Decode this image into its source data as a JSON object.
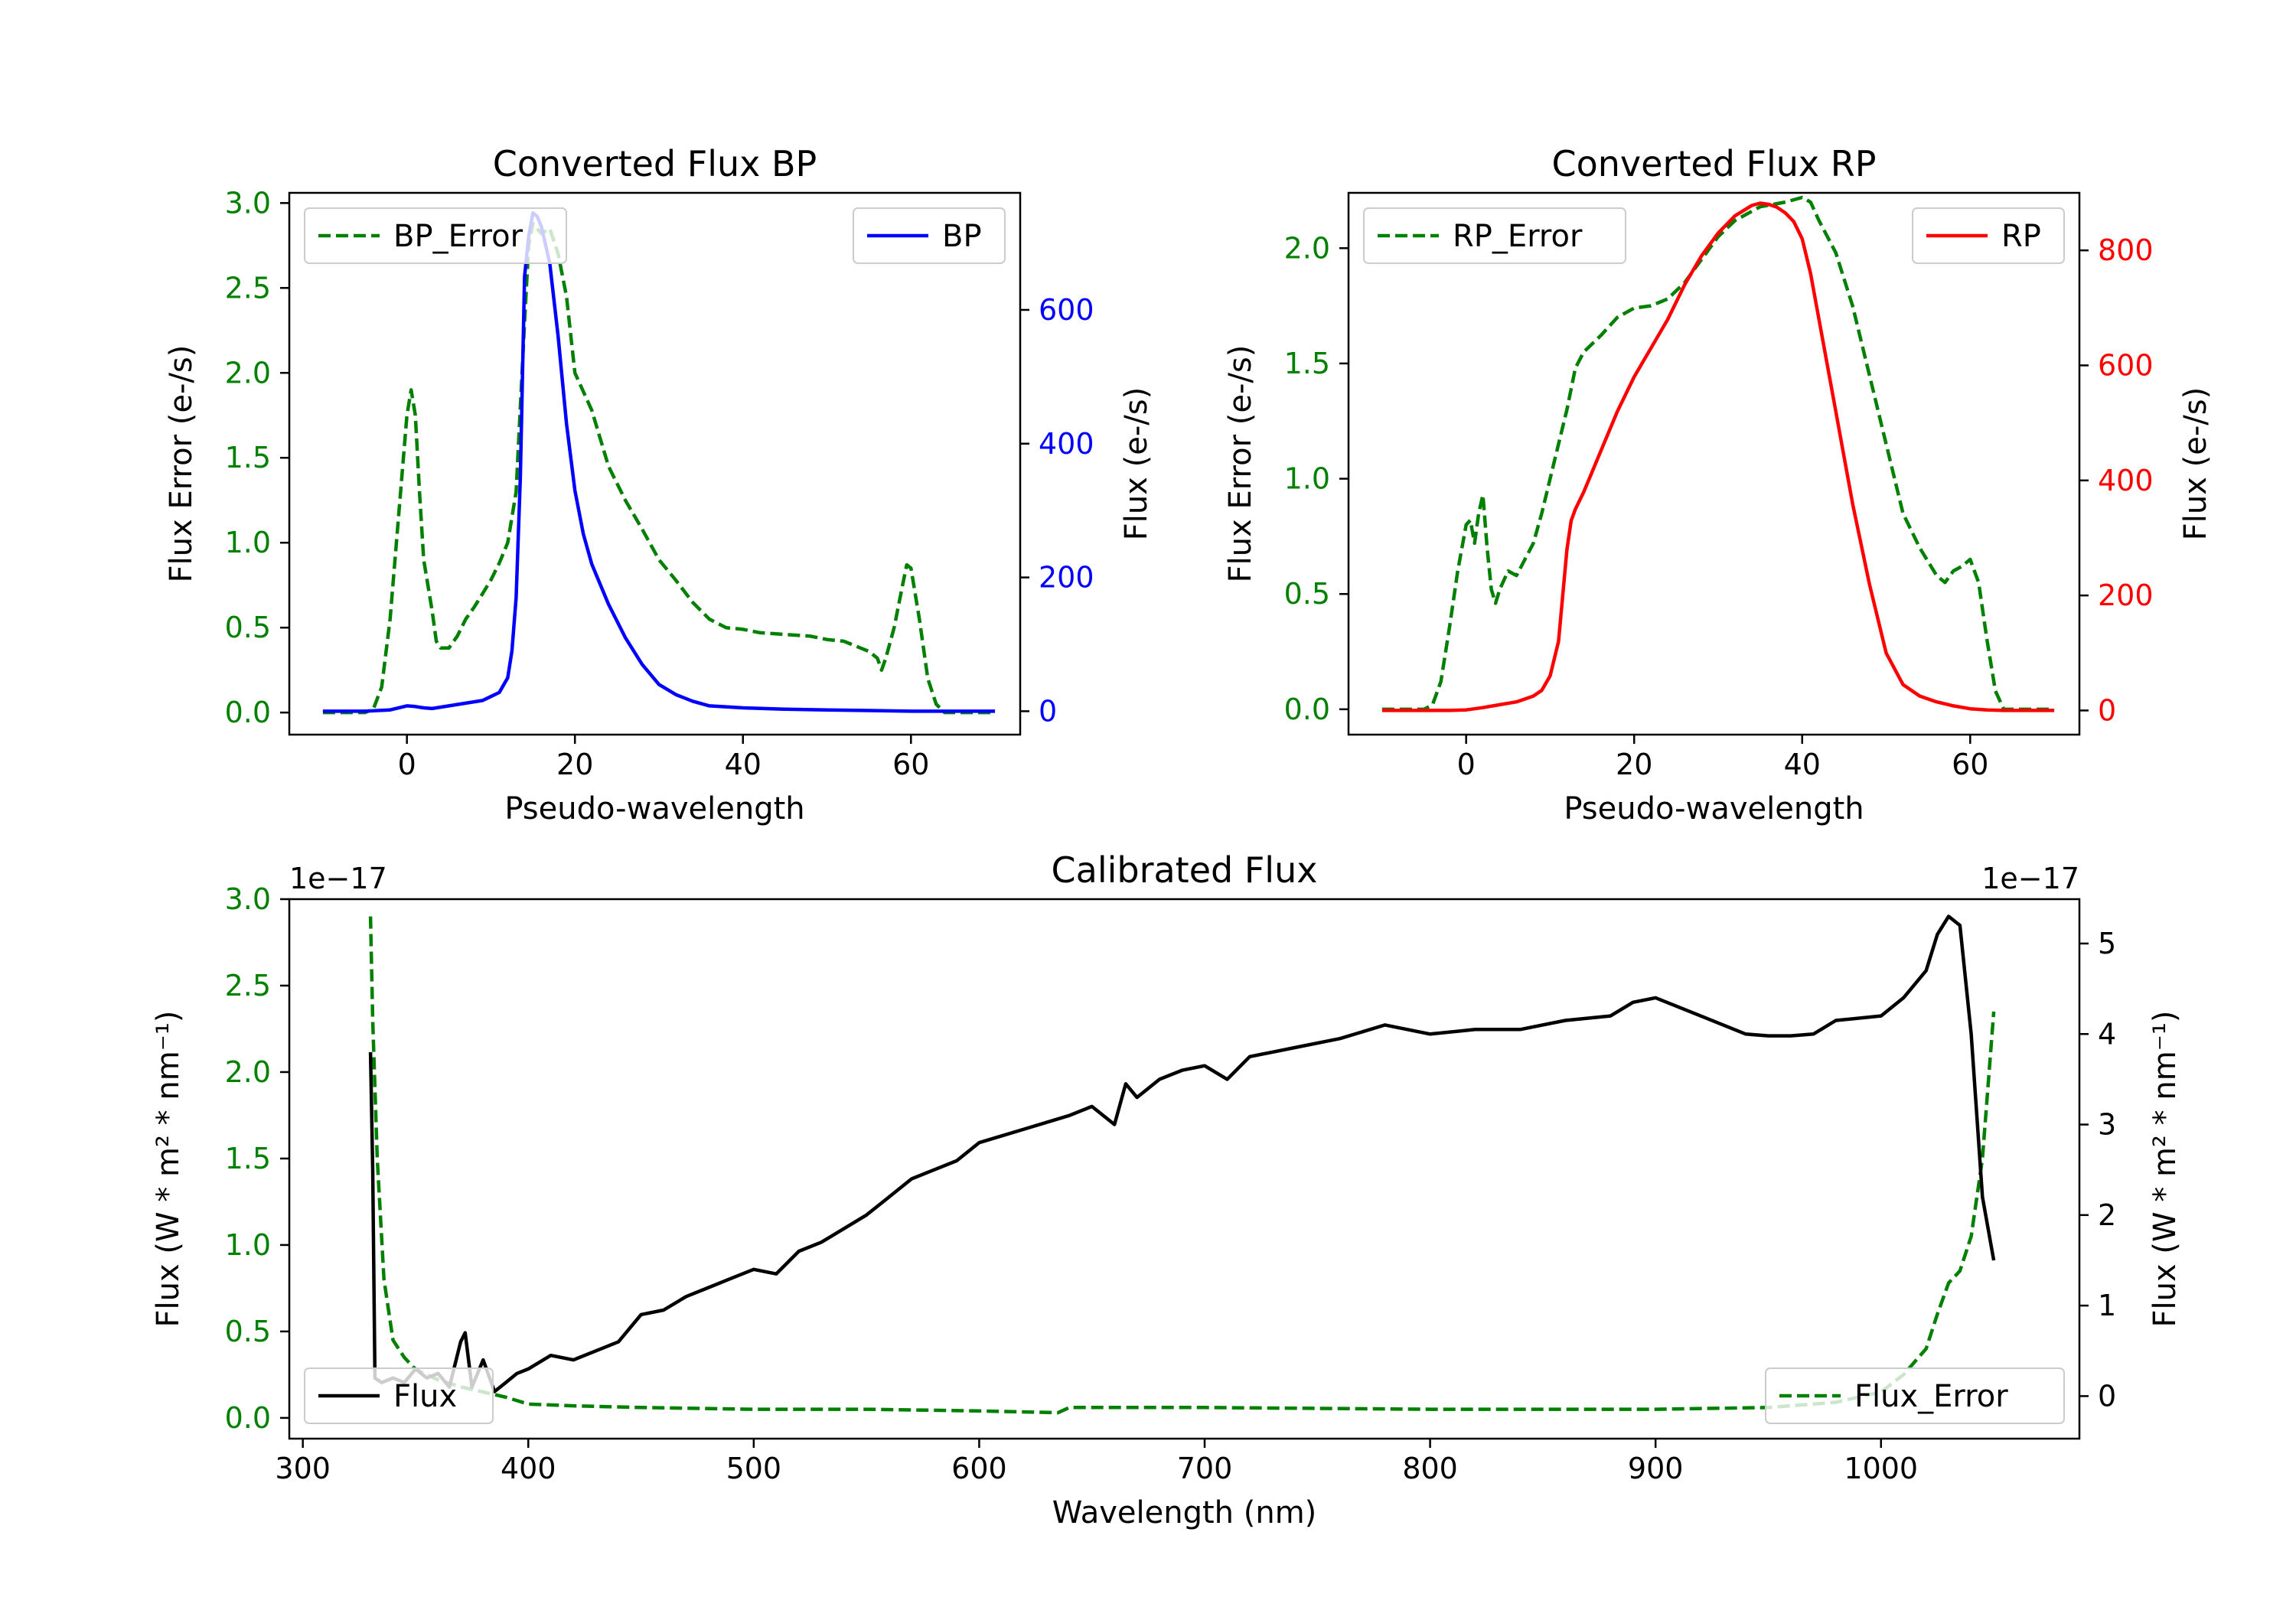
{
  "chart_data": [
    {
      "id": "bp",
      "type": "line",
      "title": "Converted Flux BP",
      "xlabel": "Pseudo-wavelength",
      "ylabel_left": "Flux Error (e-/s)",
      "ylabel_right": "Flux (e-/s)",
      "xlim": [
        -14,
        73
      ],
      "ylim_left": [
        -0.13,
        3.06
      ],
      "ylim_right": [
        -35,
        775
      ],
      "xticks": [
        "0",
        "20",
        "40",
        "60"
      ],
      "yticks_left": [
        "0.0",
        "0.5",
        "1.0",
        "1.5",
        "2.0",
        "2.5",
        "3.0"
      ],
      "yticks_right": [
        "0",
        "200",
        "400",
        "600"
      ],
      "legend_left": "BP_Error",
      "legend_right": "BP",
      "colors": {
        "error": "#008000",
        "flux": "#0000ff",
        "left_axis": "#008000",
        "right_axis": "#0000ff"
      },
      "series": [
        {
          "name": "BP_Error",
          "axis": "left",
          "style": "dashed",
          "x": [
            -10,
            -5,
            -4,
            -3,
            -2,
            -1,
            0,
            0.5,
            1,
            1.5,
            2,
            3,
            3.5,
            4,
            5,
            6,
            7,
            8,
            9,
            10,
            11,
            12,
            13,
            14,
            14.5,
            15,
            15.5,
            16,
            17,
            18,
            19,
            20,
            22,
            24,
            26,
            28,
            30,
            32,
            34,
            36,
            38,
            40,
            42,
            45,
            48,
            50,
            52,
            54,
            55,
            56,
            56.5,
            57,
            58,
            59,
            59.5,
            60,
            61,
            62,
            63,
            64,
            65,
            70
          ],
          "values": [
            0,
            0,
            0.02,
            0.15,
            0.55,
            1.15,
            1.75,
            1.9,
            1.75,
            1.3,
            0.9,
            0.6,
            0.42,
            0.38,
            0.38,
            0.45,
            0.55,
            0.62,
            0.7,
            0.78,
            0.88,
            1.0,
            1.3,
            2.3,
            2.75,
            2.88,
            2.85,
            2.82,
            2.85,
            2.7,
            2.45,
            2.0,
            1.78,
            1.45,
            1.25,
            1.08,
            0.9,
            0.78,
            0.65,
            0.55,
            0.5,
            0.49,
            0.47,
            0.46,
            0.45,
            0.43,
            0.42,
            0.38,
            0.36,
            0.32,
            0.25,
            0.32,
            0.5,
            0.75,
            0.87,
            0.85,
            0.55,
            0.2,
            0.05,
            0,
            0,
            0
          ]
        },
        {
          "name": "BP",
          "axis": "right",
          "style": "solid",
          "x": [
            -10,
            -5,
            -2,
            0,
            1,
            2,
            3,
            5,
            7,
            9,
            10,
            11,
            12,
            12.5,
            13,
            13.5,
            14,
            14.5,
            15,
            15.5,
            16,
            17,
            18,
            19,
            20,
            21,
            22,
            23,
            24,
            26,
            28,
            30,
            32,
            34,
            36,
            40,
            45,
            50,
            55,
            60,
            65,
            70
          ],
          "values": [
            0,
            0,
            2,
            8,
            7,
            5,
            4,
            8,
            12,
            16,
            22,
            28,
            50,
            90,
            170,
            350,
            650,
            710,
            745,
            740,
            725,
            670,
            560,
            430,
            330,
            265,
            220,
            190,
            160,
            110,
            70,
            40,
            25,
            15,
            8,
            5,
            3,
            2,
            1,
            0,
            0,
            0
          ]
        }
      ]
    },
    {
      "id": "rp",
      "type": "line",
      "title": "Converted Flux RP",
      "xlabel": "Pseudo-wavelength",
      "ylabel_left": "Flux Error (e-/s)",
      "ylabel_right": "Flux (e-/s)",
      "xlim": [
        -14,
        73
      ],
      "ylim_left": [
        -0.11,
        2.24
      ],
      "ylim_right": [
        -42,
        900
      ],
      "xticks": [
        "0",
        "20",
        "40",
        "60"
      ],
      "yticks_left": [
        "0.0",
        "0.5",
        "1.0",
        "1.5",
        "2.0"
      ],
      "yticks_right": [
        "0",
        "200",
        "400",
        "600",
        "800"
      ],
      "legend_left": "RP_Error",
      "legend_right": "RP",
      "colors": {
        "error": "#008000",
        "flux": "#ff0000",
        "left_axis": "#008000",
        "right_axis": "#ff0000"
      },
      "series": [
        {
          "name": "RP_Error",
          "axis": "left",
          "style": "dashed",
          "x": [
            -10,
            -5,
            -4,
            -3,
            -2,
            -1,
            0,
            0.5,
            1,
            1.5,
            2,
            2.5,
            3,
            3.5,
            4,
            5,
            6,
            7,
            8,
            9,
            10,
            11,
            12,
            13,
            14,
            16,
            18,
            20,
            22,
            24,
            26,
            28,
            30,
            32,
            35,
            38,
            40,
            41,
            42,
            44,
            46,
            48,
            50,
            52,
            54,
            56,
            57,
            58,
            59,
            60,
            61,
            62,
            63,
            64,
            70
          ],
          "values": [
            0,
            0,
            0.02,
            0.12,
            0.35,
            0.6,
            0.8,
            0.82,
            0.72,
            0.85,
            0.93,
            0.7,
            0.52,
            0.46,
            0.52,
            0.6,
            0.58,
            0.65,
            0.72,
            0.85,
            1.0,
            1.15,
            1.3,
            1.48,
            1.55,
            1.62,
            1.7,
            1.74,
            1.75,
            1.78,
            1.85,
            1.95,
            2.05,
            2.12,
            2.18,
            2.2,
            2.22,
            2.2,
            2.12,
            1.98,
            1.75,
            1.45,
            1.15,
            0.85,
            0.7,
            0.58,
            0.55,
            0.6,
            0.62,
            0.65,
            0.55,
            0.3,
            0.08,
            0,
            0
          ]
        },
        {
          "name": "RP",
          "axis": "right",
          "style": "solid",
          "x": [
            -10,
            -5,
            -2,
            0,
            2,
            4,
            6,
            8,
            9,
            10,
            11,
            11.5,
            12,
            12.5,
            13,
            14,
            16,
            18,
            20,
            22,
            24,
            26,
            28,
            30,
            32,
            34,
            35,
            36,
            37,
            38,
            39,
            40,
            41,
            42,
            44,
            46,
            48,
            50,
            52,
            54,
            56,
            58,
            60,
            62,
            64,
            66,
            70
          ],
          "values": [
            0,
            0,
            0,
            1,
            5,
            10,
            15,
            25,
            35,
            60,
            120,
            200,
            280,
            330,
            350,
            380,
            450,
            520,
            580,
            630,
            680,
            740,
            790,
            830,
            860,
            878,
            882,
            880,
            875,
            865,
            850,
            820,
            760,
            680,
            520,
            360,
            220,
            100,
            45,
            25,
            15,
            8,
            3,
            1,
            0,
            0,
            0
          ]
        }
      ]
    },
    {
      "id": "cal",
      "type": "line",
      "title": "Calibrated Flux",
      "xlabel": "Wavelength (nm)",
      "ylabel_left": "Flux (W * m² * nm⁻¹)",
      "ylabel_right": "Flux (W * m² * nm⁻¹)",
      "offset_left": "1e−17",
      "offset_right": "1e−17",
      "xlim": [
        294,
        1088
      ],
      "ylim_left": [
        -0.12,
        3.0
      ],
      "ylim_right": [
        -0.47,
        5.49
      ],
      "xticks": [
        "300",
        "400",
        "500",
        "600",
        "700",
        "800",
        "900",
        "1000"
      ],
      "yticks_left": [
        "0.0",
        "0.5",
        "1.0",
        "1.5",
        "2.0",
        "2.5",
        "3.0"
      ],
      "yticks_right": [
        "0",
        "1",
        "2",
        "3",
        "4",
        "5"
      ],
      "legend_left": "Flux",
      "legend_right": "Flux_Error",
      "colors": {
        "error": "#008000",
        "flux": "#000000",
        "left_axis": "#008000",
        "right_axis": "#000000"
      },
      "series": [
        {
          "name": "Flux_Error",
          "axis": "left",
          "style": "dashed",
          "x": [
            330,
            331,
            333,
            336,
            340,
            345,
            350,
            360,
            370,
            380,
            390,
            400,
            420,
            450,
            500,
            550,
            600,
            635,
            640,
            700,
            800,
            900,
            950,
            980,
            1000,
            1010,
            1020,
            1025,
            1030,
            1035,
            1040,
            1045,
            1050
          ],
          "values": [
            2.9,
            2.3,
            1.5,
            0.8,
            0.45,
            0.35,
            0.28,
            0.22,
            0.18,
            0.15,
            0.12,
            0.08,
            0.07,
            0.06,
            0.05,
            0.05,
            0.04,
            0.03,
            0.06,
            0.06,
            0.05,
            0.05,
            0.06,
            0.09,
            0.15,
            0.25,
            0.4,
            0.6,
            0.78,
            0.85,
            1.05,
            1.5,
            2.35
          ]
        },
        {
          "name": "Flux",
          "axis": "right",
          "style": "solid",
          "x": [
            330,
            331,
            332,
            335,
            340,
            345,
            350,
            355,
            360,
            365,
            370,
            372,
            375,
            380,
            385,
            390,
            395,
            400,
            410,
            420,
            430,
            440,
            450,
            460,
            470,
            480,
            490,
            500,
            510,
            520,
            530,
            540,
            550,
            560,
            570,
            580,
            590,
            600,
            620,
            640,
            650,
            660,
            665,
            670,
            680,
            690,
            700,
            710,
            720,
            730,
            740,
            760,
            780,
            800,
            820,
            840,
            860,
            880,
            890,
            900,
            920,
            940,
            950,
            960,
            970,
            980,
            1000,
            1010,
            1020,
            1025,
            1030,
            1035,
            1040,
            1045,
            1050
          ],
          "values": [
            3.8,
            2.5,
            0.2,
            0.15,
            0.2,
            0.15,
            0.3,
            0.2,
            0.25,
            0.1,
            0.6,
            0.7,
            0.1,
            0.4,
            0.05,
            0.15,
            0.25,
            0.3,
            0.45,
            0.4,
            0.5,
            0.6,
            0.9,
            0.95,
            1.1,
            1.2,
            1.3,
            1.4,
            1.35,
            1.6,
            1.7,
            1.85,
            2.0,
            2.2,
            2.4,
            2.5,
            2.6,
            2.8,
            2.95,
            3.1,
            3.2,
            3.0,
            3.45,
            3.3,
            3.5,
            3.6,
            3.65,
            3.5,
            3.75,
            3.8,
            3.85,
            3.95,
            4.1,
            4.0,
            4.05,
            4.05,
            4.15,
            4.2,
            4.35,
            4.4,
            4.2,
            4.0,
            3.98,
            3.98,
            4.0,
            4.15,
            4.2,
            4.4,
            4.7,
            5.1,
            5.3,
            5.2,
            4.0,
            2.2,
            1.5
          ]
        }
      ]
    }
  ]
}
